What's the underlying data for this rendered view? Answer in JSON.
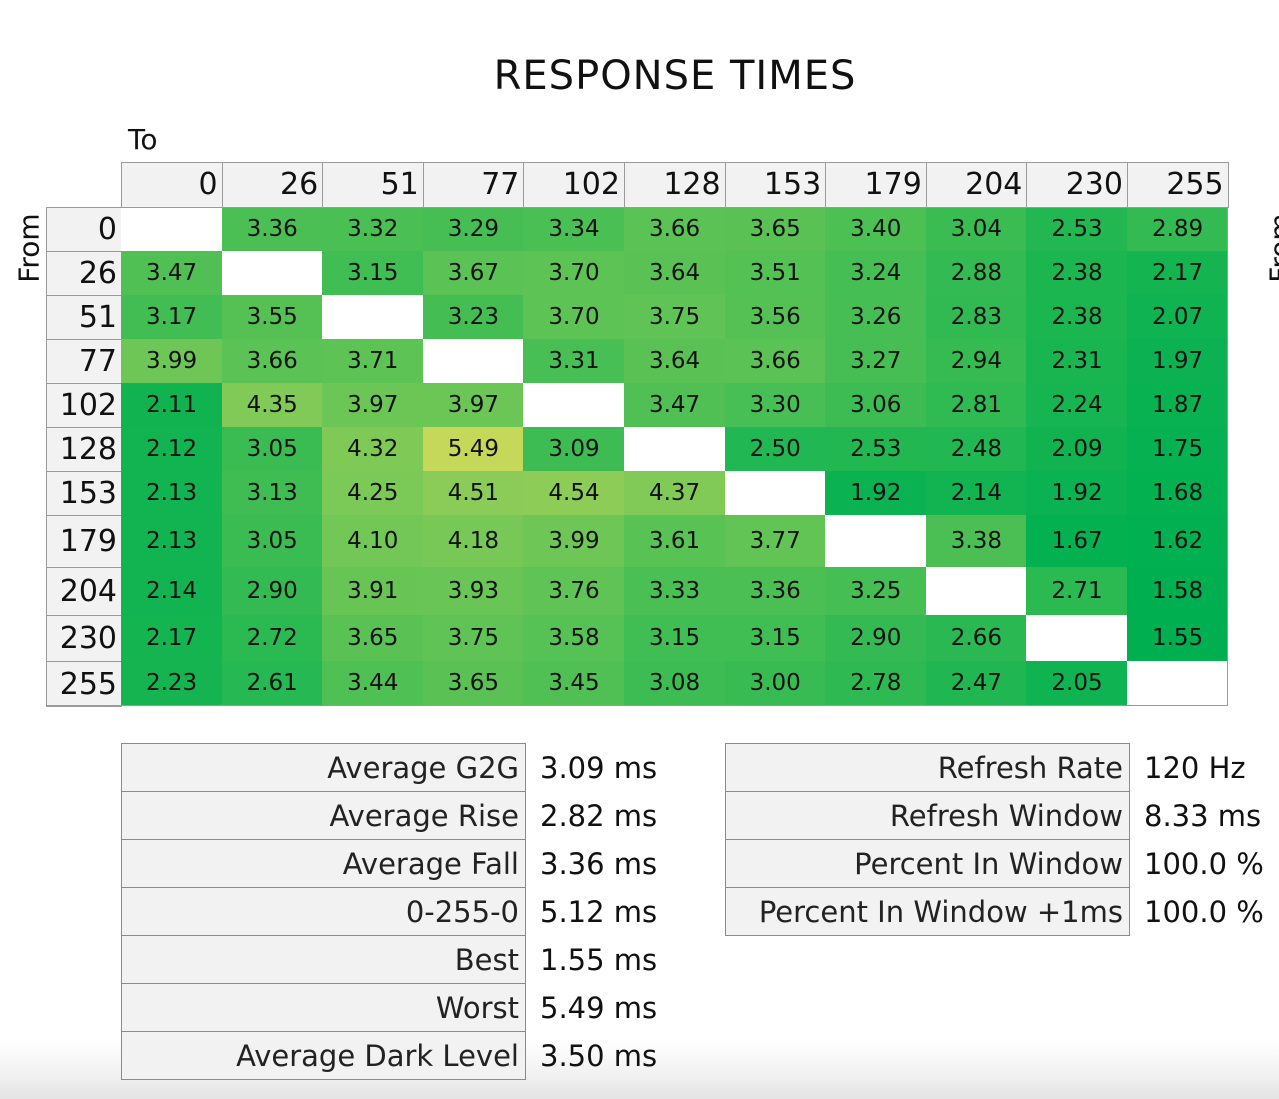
{
  "chart_data": {
    "type": "heatmap",
    "title": "RESPONSE TIMES",
    "xlabel": "To",
    "ylabel": "From",
    "x_categories": [
      "0",
      "26",
      "51",
      "77",
      "102",
      "128",
      "153",
      "179",
      "204",
      "230",
      "255"
    ],
    "y_categories": [
      "0",
      "26",
      "51",
      "77",
      "102",
      "128",
      "153",
      "179",
      "204",
      "230",
      "255"
    ],
    "values": [
      [
        null,
        "3.36",
        "3.32",
        "3.29",
        "3.34",
        "3.66",
        "3.65",
        "3.40",
        "3.04",
        "2.53",
        "2.89"
      ],
      [
        "3.47",
        null,
        "3.15",
        "3.67",
        "3.70",
        "3.64",
        "3.51",
        "3.24",
        "2.88",
        "2.38",
        "2.17"
      ],
      [
        "3.17",
        "3.55",
        null,
        "3.23",
        "3.70",
        "3.75",
        "3.56",
        "3.26",
        "2.83",
        "2.38",
        "2.07"
      ],
      [
        "3.99",
        "3.66",
        "3.71",
        null,
        "3.31",
        "3.64",
        "3.66",
        "3.27",
        "2.94",
        "2.31",
        "1.97"
      ],
      [
        "2.11",
        "4.35",
        "3.97",
        "3.97",
        null,
        "3.47",
        "3.30",
        "3.06",
        "2.81",
        "2.24",
        "1.87"
      ],
      [
        "2.12",
        "3.05",
        "4.32",
        "5.49",
        "3.09",
        null,
        "2.50",
        "2.53",
        "2.48",
        "2.09",
        "1.75"
      ],
      [
        "2.13",
        "3.13",
        "4.25",
        "4.51",
        "4.54",
        "4.37",
        null,
        "1.92",
        "2.14",
        "1.92",
        "1.68"
      ],
      [
        "2.13",
        "3.05",
        "4.10",
        "4.18",
        "3.99",
        "3.61",
        "3.77",
        null,
        "3.38",
        "1.67",
        "1.62"
      ],
      [
        "2.14",
        "2.90",
        "3.91",
        "3.93",
        "3.76",
        "3.33",
        "3.36",
        "3.25",
        null,
        "2.71",
        "1.58"
      ],
      [
        "2.17",
        "2.72",
        "3.65",
        "3.75",
        "3.58",
        "3.15",
        "3.15",
        "2.90",
        "2.66",
        null,
        "1.55"
      ],
      [
        "2.23",
        "2.61",
        "3.44",
        "3.65",
        "3.45",
        "3.08",
        "3.00",
        "2.78",
        "2.47",
        "2.05",
        null
      ]
    ],
    "color_low": "#00b050",
    "color_high": "#c6d85a"
  },
  "stats_left": [
    {
      "label": "Average G2G",
      "value": "3.09 ms"
    },
    {
      "label": "Average Rise",
      "value": "2.82 ms"
    },
    {
      "label": "Average Fall",
      "value": "3.36 ms"
    },
    {
      "label": "0-255-0",
      "value": "5.12 ms"
    },
    {
      "label": "Best",
      "value": "1.55 ms"
    },
    {
      "label": "Worst",
      "value": "5.49 ms"
    },
    {
      "label": "Average Dark Level",
      "value": "3.50 ms"
    }
  ],
  "stats_right": [
    {
      "label": "Refresh Rate",
      "value": "120 Hz"
    },
    {
      "label": "Refresh Window",
      "value": "8.33 ms"
    },
    {
      "label": "Percent In Window",
      "value": "100.0 %"
    },
    {
      "label": "Percent In Window +1ms",
      "value": "100.0 %"
    }
  ]
}
